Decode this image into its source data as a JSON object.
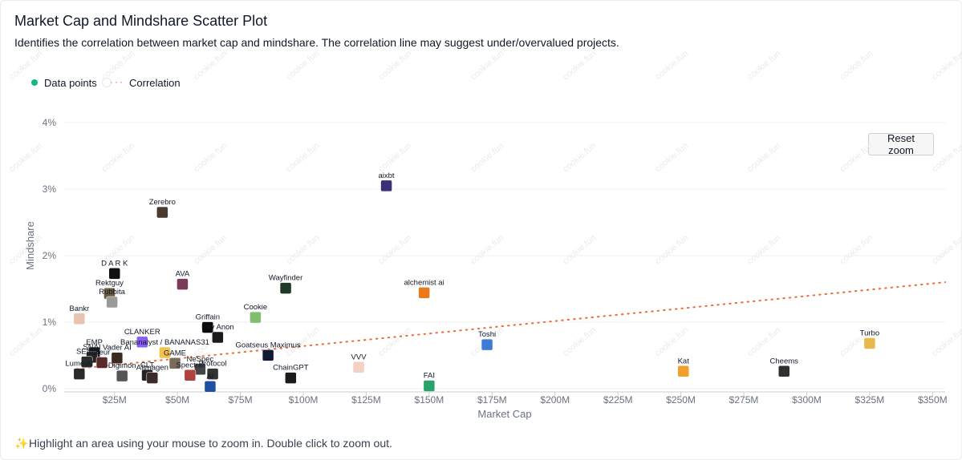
{
  "header": {
    "title": "Market Cap and Mindshare Scatter Plot",
    "subtitle": "Identifies the correlation between market cap and mindshare. The correlation line may suggest under/overvalued projects."
  },
  "legend": {
    "data_points": "Data points",
    "correlation": "Correlation"
  },
  "controls": {
    "reset_zoom": "Reset zoom"
  },
  "footer": {
    "hint": "Highlight an area using your mouse to zoom in. Double click to zoom out."
  },
  "watermark": {
    "text": "cookie.fun"
  },
  "colors": {
    "data_point": "#10b981",
    "correlation": "#ef6b3a",
    "grid": "#f0f0f0"
  },
  "chart_data": {
    "type": "scatter",
    "title": "Market Cap and Mindshare Scatter Plot",
    "xlabel": "Market Cap",
    "ylabel": "Mindshare",
    "xlim": [
      5,
      355
    ],
    "ylim": [
      -0.05,
      4.35
    ],
    "x_unit": "$M",
    "y_unit": "%",
    "x_ticks": [
      25,
      50,
      75,
      100,
      125,
      150,
      175,
      200,
      225,
      250,
      275,
      300,
      325,
      350
    ],
    "x_tick_labels": [
      "$25M",
      "$50M",
      "$75M",
      "$100M",
      "$125M",
      "$150M",
      "$175M",
      "$200M",
      "$225M",
      "$250M",
      "$275M",
      "$300M",
      "$325M",
      "$350M"
    ],
    "y_ticks": [
      0,
      1,
      2,
      3,
      4
    ],
    "y_tick_labels": [
      "0%",
      "1%",
      "2%",
      "3%",
      "4%"
    ],
    "grid": true,
    "legend_position": "top-left",
    "correlation_line": {
      "x": [
        10,
        355
      ],
      "y": [
        0.3,
        1.6
      ]
    },
    "points": [
      {
        "name": "aixbt",
        "x": 133,
        "y": 3.05,
        "color": "#3b2f7a"
      },
      {
        "name": "Zerebro",
        "x": 44,
        "y": 2.65,
        "color": "#4a3b30"
      },
      {
        "name": "D A R K",
        "x": 25,
        "y": 1.73,
        "color": "#111111"
      },
      {
        "name": "AVA",
        "x": 52,
        "y": 1.57,
        "color": "#7c3a5a"
      },
      {
        "name": "Wayfinder",
        "x": 93,
        "y": 1.51,
        "color": "#1f3a26"
      },
      {
        "name": "alchemist ai",
        "x": 148,
        "y": 1.44,
        "color": "#ea7b1c"
      },
      {
        "name": "Rektguy",
        "x": 23,
        "y": 1.43,
        "color": "#6b5b3a"
      },
      {
        "name": "Rubbita",
        "x": 24,
        "y": 1.3,
        "color": "#9a9a9a"
      },
      {
        "name": "Bankr",
        "x": 11,
        "y": 1.05,
        "color": "#e8c3b0"
      },
      {
        "name": "Cookie",
        "x": 81,
        "y": 1.07,
        "color": "#7fbf6f"
      },
      {
        "name": "Griffain",
        "x": 62,
        "y": 0.92,
        "color": "#0a0a0a"
      },
      {
        "name": "Pay Anon",
        "x": 66,
        "y": 0.77,
        "color": "#1b1b1b"
      },
      {
        "name": "CLANKER",
        "x": 36,
        "y": 0.7,
        "color": "#8b5cf6"
      },
      {
        "name": "Toshi",
        "x": 173,
        "y": 0.66,
        "color": "#3d7bd4"
      },
      {
        "name": "Turbo",
        "x": 325,
        "y": 0.68,
        "color": "#e8b84a"
      },
      {
        "name": "EMP",
        "x": 17,
        "y": 0.54,
        "color": "#1a1a1a"
      },
      {
        "name": "Bananalyst / BANANAS31",
        "x": 45,
        "y": 0.54,
        "color": "#f2c14e"
      },
      {
        "name": "Goatseus Maximus",
        "x": 86,
        "y": 0.5,
        "color": "#0f1a33"
      },
      {
        "name": "SNAI",
        "x": 16,
        "y": 0.47,
        "color": "#222222"
      },
      {
        "name": "Vader AI",
        "x": 26,
        "y": 0.46,
        "color": "#3b2a1f"
      },
      {
        "name": "SEND",
        "x": 14,
        "y": 0.4,
        "color": "#2b2b2b"
      },
      {
        "name": "Neur",
        "x": 20,
        "y": 0.39,
        "color": "#5a2a2a"
      },
      {
        "name": "GAME",
        "x": 49,
        "y": 0.38,
        "color": "#7b6b5a"
      },
      {
        "name": "VVV",
        "x": 122,
        "y": 0.32,
        "color": "#f5d0c5"
      },
      {
        "name": "NeSpec",
        "x": 59,
        "y": 0.29,
        "color": "#444444"
      },
      {
        "name": "Kat",
        "x": 251,
        "y": 0.26,
        "color": "#f0a12c"
      },
      {
        "name": "Cheems",
        "x": 291,
        "y": 0.26,
        "color": "#2f2f2f"
      },
      {
        "name": "Protocol",
        "x": 64,
        "y": 0.22,
        "color": "#333333"
      },
      {
        "name": "ChainGPT",
        "x": 95,
        "y": 0.16,
        "color": "#1a1a1a"
      },
      {
        "name": "LumeiAI",
        "x": 11,
        "y": 0.22,
        "color": "#2a2a2a"
      },
      {
        "name": "CLT",
        "x": 38,
        "y": 0.2,
        "color": "#222222"
      },
      {
        "name": "Digimon",
        "x": 28,
        "y": 0.19,
        "color": "#555555"
      },
      {
        "name": "AIlmagen",
        "x": 40,
        "y": 0.16,
        "color": "#3a2a2a"
      },
      {
        "name": "Spectral",
        "x": 55,
        "y": 0.2,
        "color": "#b0413e"
      },
      {
        "name": "FAI",
        "x": 150,
        "y": 0.04,
        "color": "#2aa36a"
      },
      {
        "name": "AI",
        "x": 63,
        "y": 0.03,
        "color": "#1e4fa0"
      }
    ]
  }
}
